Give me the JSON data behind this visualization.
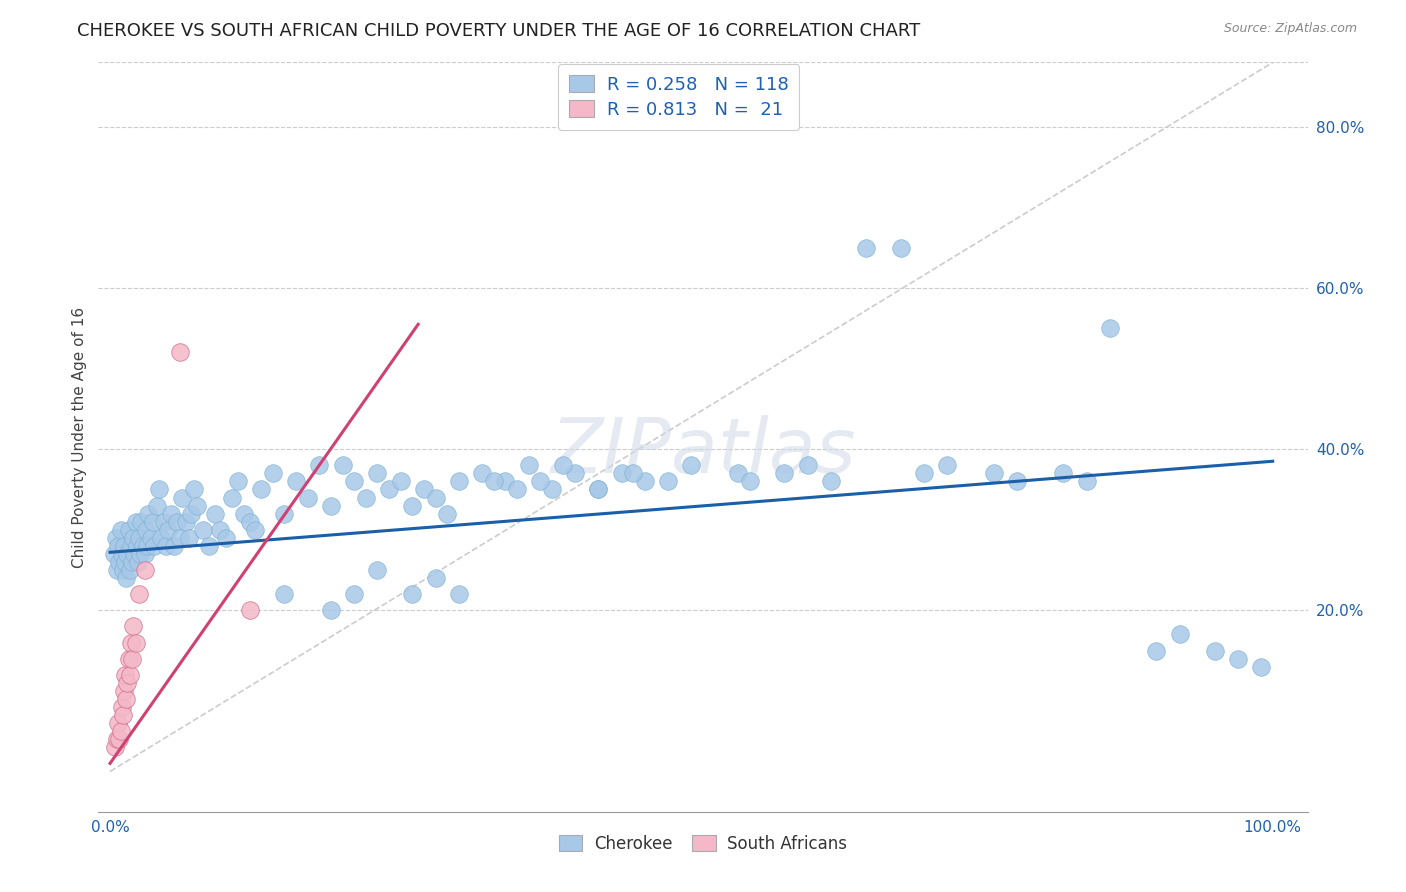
{
  "title": "CHEROKEE VS SOUTH AFRICAN CHILD POVERTY UNDER THE AGE OF 16 CORRELATION CHART",
  "source": "Source: ZipAtlas.com",
  "ylabel": "Child Poverty Under the Age of 16",
  "background_color": "#ffffff",
  "watermark_text": "ZIPatlas",
  "legend_r_cherokee": "0.258",
  "legend_n_cherokee": "118",
  "legend_r_sa": "0.813",
  "legend_n_sa": "21",
  "cherokee_color": "#a8c8e8",
  "cherokee_edge_color": "#7aafd0",
  "cherokee_line_color": "#1a5fa8",
  "sa_color": "#f4b8c8",
  "sa_edge_color": "#d07090",
  "sa_line_color": "#d04070",
  "blue_text_color": "#2060b0",
  "grid_color": "#cccccc",
  "tick_color": "#2060b0",
  "title_color": "#222222",
  "ylabel_color": "#444444",
  "source_color": "#888888",
  "cherokee_line_x": [
    0.0,
    1.0
  ],
  "cherokee_line_y": [
    0.272,
    0.385
  ],
  "sa_line_x": [
    0.0,
    0.265
  ],
  "sa_line_y": [
    0.01,
    0.555
  ],
  "diag_line_x": [
    0.0,
    1.0
  ],
  "diag_line_y": [
    0.0,
    0.88
  ],
  "xlim": [
    -0.01,
    1.03
  ],
  "ylim": [
    -0.05,
    0.88
  ],
  "xtick_positions": [
    0.0,
    0.2,
    0.4,
    0.6,
    0.8,
    1.0
  ],
  "xtick_labels": [
    "0.0%",
    "",
    "",
    "",
    "",
    "100.0%"
  ],
  "ytick_positions": [
    0.2,
    0.4,
    0.6,
    0.8
  ],
  "ytick_labels": [
    "20.0%",
    "40.0%",
    "60.0%",
    "80.0%"
  ],
  "title_fontsize": 13,
  "source_fontsize": 9,
  "axis_label_fontsize": 11,
  "tick_fontsize": 11,
  "legend_fontsize": 13,
  "watermark_fontsize": 55,
  "scatter_size": 160,
  "cherokee_scatter_x": [
    0.003,
    0.005,
    0.006,
    0.007,
    0.008,
    0.009,
    0.01,
    0.011,
    0.012,
    0.013,
    0.014,
    0.015,
    0.016,
    0.017,
    0.018,
    0.019,
    0.02,
    0.021,
    0.022,
    0.023,
    0.024,
    0.025,
    0.026,
    0.027,
    0.028,
    0.03,
    0.031,
    0.032,
    0.033,
    0.035,
    0.037,
    0.038,
    0.04,
    0.042,
    0.044,
    0.046,
    0.048,
    0.05,
    0.052,
    0.055,
    0.058,
    0.06,
    0.062,
    0.065,
    0.068,
    0.07,
    0.072,
    0.075,
    0.08,
    0.085,
    0.09,
    0.095,
    0.1,
    0.105,
    0.11,
    0.115,
    0.12,
    0.125,
    0.13,
    0.14,
    0.15,
    0.16,
    0.17,
    0.18,
    0.19,
    0.2,
    0.21,
    0.22,
    0.23,
    0.24,
    0.25,
    0.26,
    0.27,
    0.28,
    0.29,
    0.3,
    0.32,
    0.34,
    0.36,
    0.38,
    0.4,
    0.42,
    0.44,
    0.46,
    0.5,
    0.54,
    0.55,
    0.58,
    0.6,
    0.62,
    0.65,
    0.68,
    0.7,
    0.72,
    0.76,
    0.78,
    0.82,
    0.84,
    0.86,
    0.9,
    0.92,
    0.95,
    0.97,
    0.99,
    0.15,
    0.19,
    0.21,
    0.23,
    0.26,
    0.28,
    0.3,
    0.33,
    0.35,
    0.37,
    0.39,
    0.42,
    0.45,
    0.48
  ],
  "cherokee_scatter_y": [
    0.27,
    0.29,
    0.25,
    0.28,
    0.26,
    0.3,
    0.27,
    0.25,
    0.28,
    0.26,
    0.24,
    0.27,
    0.3,
    0.25,
    0.28,
    0.26,
    0.29,
    0.27,
    0.31,
    0.28,
    0.26,
    0.29,
    0.27,
    0.31,
    0.28,
    0.27,
    0.3,
    0.28,
    0.32,
    0.29,
    0.31,
    0.28,
    0.33,
    0.35,
    0.29,
    0.31,
    0.28,
    0.3,
    0.32,
    0.28,
    0.31,
    0.29,
    0.34,
    0.31,
    0.29,
    0.32,
    0.35,
    0.33,
    0.3,
    0.28,
    0.32,
    0.3,
    0.29,
    0.34,
    0.36,
    0.32,
    0.31,
    0.3,
    0.35,
    0.37,
    0.32,
    0.36,
    0.34,
    0.38,
    0.33,
    0.38,
    0.36,
    0.34,
    0.37,
    0.35,
    0.36,
    0.33,
    0.35,
    0.34,
    0.32,
    0.36,
    0.37,
    0.36,
    0.38,
    0.35,
    0.37,
    0.35,
    0.37,
    0.36,
    0.38,
    0.37,
    0.36,
    0.37,
    0.38,
    0.36,
    0.65,
    0.65,
    0.37,
    0.38,
    0.37,
    0.36,
    0.37,
    0.36,
    0.55,
    0.15,
    0.17,
    0.15,
    0.14,
    0.13,
    0.22,
    0.2,
    0.22,
    0.25,
    0.22,
    0.24,
    0.22,
    0.36,
    0.35,
    0.36,
    0.38,
    0.35,
    0.37,
    0.36
  ],
  "sa_scatter_x": [
    0.004,
    0.006,
    0.007,
    0.008,
    0.009,
    0.01,
    0.011,
    0.012,
    0.013,
    0.014,
    0.015,
    0.016,
    0.017,
    0.018,
    0.019,
    0.02,
    0.022,
    0.025,
    0.03,
    0.06,
    0.12
  ],
  "sa_scatter_y": [
    0.03,
    0.04,
    0.06,
    0.04,
    0.05,
    0.08,
    0.07,
    0.1,
    0.12,
    0.09,
    0.11,
    0.14,
    0.12,
    0.16,
    0.14,
    0.18,
    0.16,
    0.22,
    0.25,
    0.52,
    0.2
  ]
}
